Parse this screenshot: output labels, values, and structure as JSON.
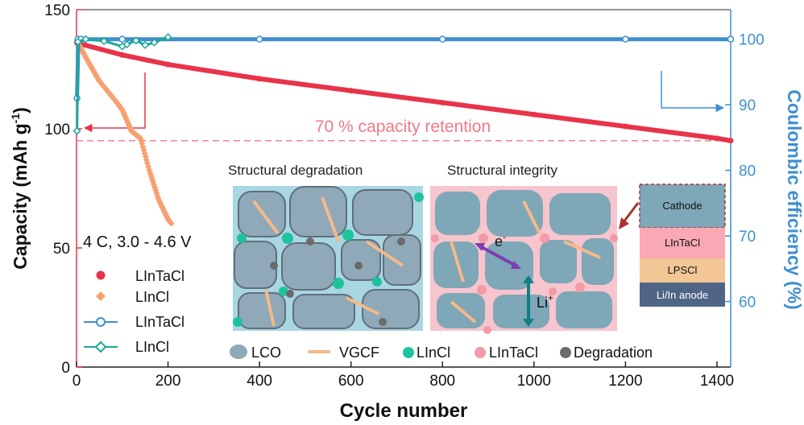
{
  "chart_data": {
    "type": "scatter",
    "xlabel": "Cycle number",
    "ylabel": "Capacity (mAh g",
    "ylabel_sup": "-1",
    "ylabel_close": ")",
    "y2label": "Coulombic efficiency (%)",
    "xlim": [
      0,
      1430
    ],
    "ylim": [
      0,
      150
    ],
    "y2lim": [
      50,
      104.5
    ],
    "xticks": [
      0,
      200,
      400,
      600,
      800,
      1000,
      1200,
      1400
    ],
    "yticks": [
      0,
      50,
      100,
      150
    ],
    "y2ticks": [
      60,
      70,
      80,
      90,
      100
    ],
    "condition": "4 C, 3.0 - 4.6 V",
    "reference_line": {
      "y": 95,
      "label": "70 % capacity retention",
      "color": "#f07a8a"
    },
    "series": [
      {
        "name": "LInTaCl",
        "axis": "capacity",
        "color": "#e8334a",
        "x": [
          1,
          100,
          200,
          400,
          600,
          800,
          1000,
          1200,
          1400,
          1430
        ],
        "y": [
          136,
          131,
          127,
          121,
          116,
          111,
          106,
          101,
          96,
          95
        ]
      },
      {
        "name": "LInCl",
        "axis": "capacity",
        "color": "#f7a072",
        "x": [
          1,
          20,
          50,
          80,
          100,
          120,
          140,
          160,
          180,
          200,
          208
        ],
        "y": [
          137,
          130,
          120,
          113,
          108,
          99,
          96,
          82,
          70,
          62,
          60
        ]
      },
      {
        "name": "LInTaCl",
        "axis": "efficiency",
        "color": "#3f8fcf",
        "x": [
          1,
          3,
          10,
          100,
          400,
          800,
          1200,
          1430
        ],
        "y": [
          91,
          100,
          100,
          100,
          100,
          100,
          100,
          100
        ]
      },
      {
        "name": "LInCl",
        "axis": "efficiency",
        "color": "#1aa99a",
        "x": [
          1,
          3,
          20,
          60,
          100,
          110,
          130,
          150,
          170,
          200
        ],
        "y": [
          86,
          99.6,
          100,
          99.7,
          98.9,
          99.2,
          99.8,
          99.1,
          99.5,
          100.3
        ]
      }
    ],
    "legend": [
      "LInTaCl",
      "LInCl",
      "LInTaCl",
      "LInCl"
    ],
    "inset": {
      "left_title": "Structural degradation",
      "right_title": "Structural integrity",
      "electron_label": "e",
      "electron_sup": "-",
      "ion_label": "Li",
      "ion_sup": "+",
      "stack_layers": [
        "Cathode",
        "LInTaCl",
        "LPSCl",
        "Li/In anode"
      ],
      "stack_colors": [
        "#7ea7b8",
        "#f9a8b4",
        "#f3c695",
        "#4f6585"
      ],
      "legend": [
        "LCO",
        "VGCF",
        "LInCl",
        "LInTaCl",
        "Degradation"
      ],
      "legend_colors": [
        "#8fa9b9",
        "#f5b98a",
        "#1dc39a",
        "#f49aa7",
        "#6b6b6b"
      ]
    },
    "colors": {
      "left_axis": "#e8334a",
      "right_axis": "#3f8fcf"
    }
  }
}
